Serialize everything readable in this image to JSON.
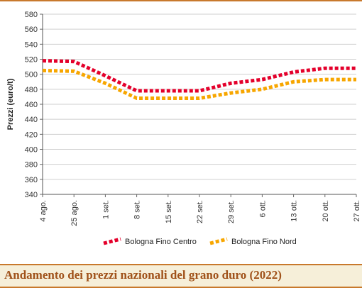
{
  "page": {
    "caption": "Andamento dei prezzi nazionali del grano duro (2022)"
  },
  "colors": {
    "series_centro": "#e4002b",
    "series_nord": "#f7a600",
    "grid": "#cfcfcf",
    "accent": "#c8792c",
    "caption_text": "#a0521a",
    "caption_bg": "#f6efd9"
  },
  "chart_data": {
    "type": "line",
    "title": "",
    "xlabel": "",
    "ylabel": "Prezzi (euro/t)",
    "ylim": [
      340,
      580
    ],
    "yticks": [
      340,
      360,
      380,
      400,
      420,
      440,
      460,
      480,
      500,
      520,
      540,
      560,
      580
    ],
    "categories": [
      "4 ago.",
      "25 ago.",
      "1 set.",
      "8 set.",
      "15 set.",
      "22 set.",
      "29 set.",
      "6 ott.",
      "13 ott.",
      "20 ott.",
      "27 ott."
    ],
    "series": [
      {
        "name": "Bologna Fino Centro",
        "color": "#e4002b",
        "values": [
          518,
          517,
          498,
          478,
          478,
          478,
          488,
          493,
          503,
          508,
          508
        ]
      },
      {
        "name": "Bologna Fino Nord",
        "color": "#f7a600",
        "values": [
          505,
          504,
          488,
          468,
          468,
          468,
          475,
          480,
          490,
          493,
          493
        ]
      }
    ],
    "grid": "horizontal",
    "legend_position": "bottom"
  }
}
